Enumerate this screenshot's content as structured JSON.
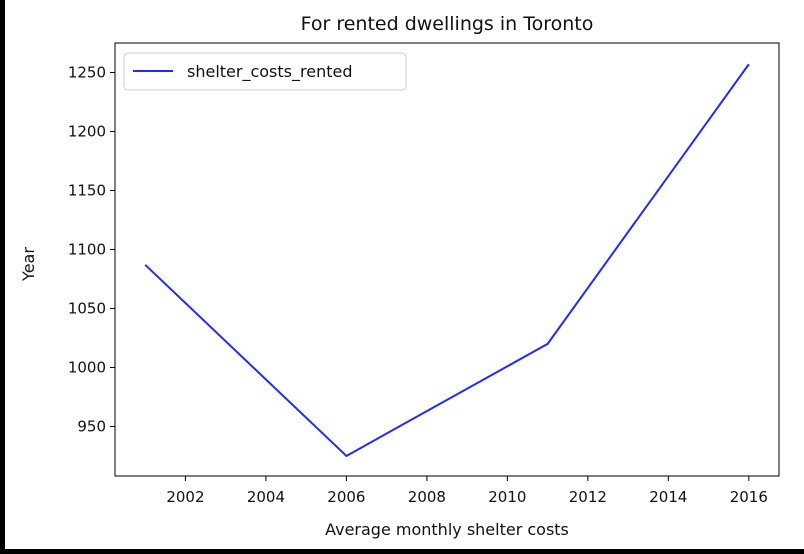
{
  "chart_data": {
    "type": "line",
    "title": "For rented dwellings in Toronto",
    "xlabel": "Average monthly shelter costs",
    "ylabel": "Year",
    "xlim": [
      2000.25,
      2016.75
    ],
    "ylim": [
      908,
      1275
    ],
    "x_ticks": [
      2002,
      2004,
      2006,
      2008,
      2010,
      2012,
      2014,
      2016
    ],
    "y_ticks": [
      950,
      1000,
      1050,
      1100,
      1150,
      1200,
      1250
    ],
    "grid": false,
    "legend_position": "upper-left",
    "series": [
      {
        "name": "shelter_costs_rented",
        "color": "#1f2bff",
        "x": [
          2001,
          2006,
          2011,
          2016
        ],
        "y": [
          1087,
          925,
          1020,
          1257
        ]
      }
    ]
  }
}
